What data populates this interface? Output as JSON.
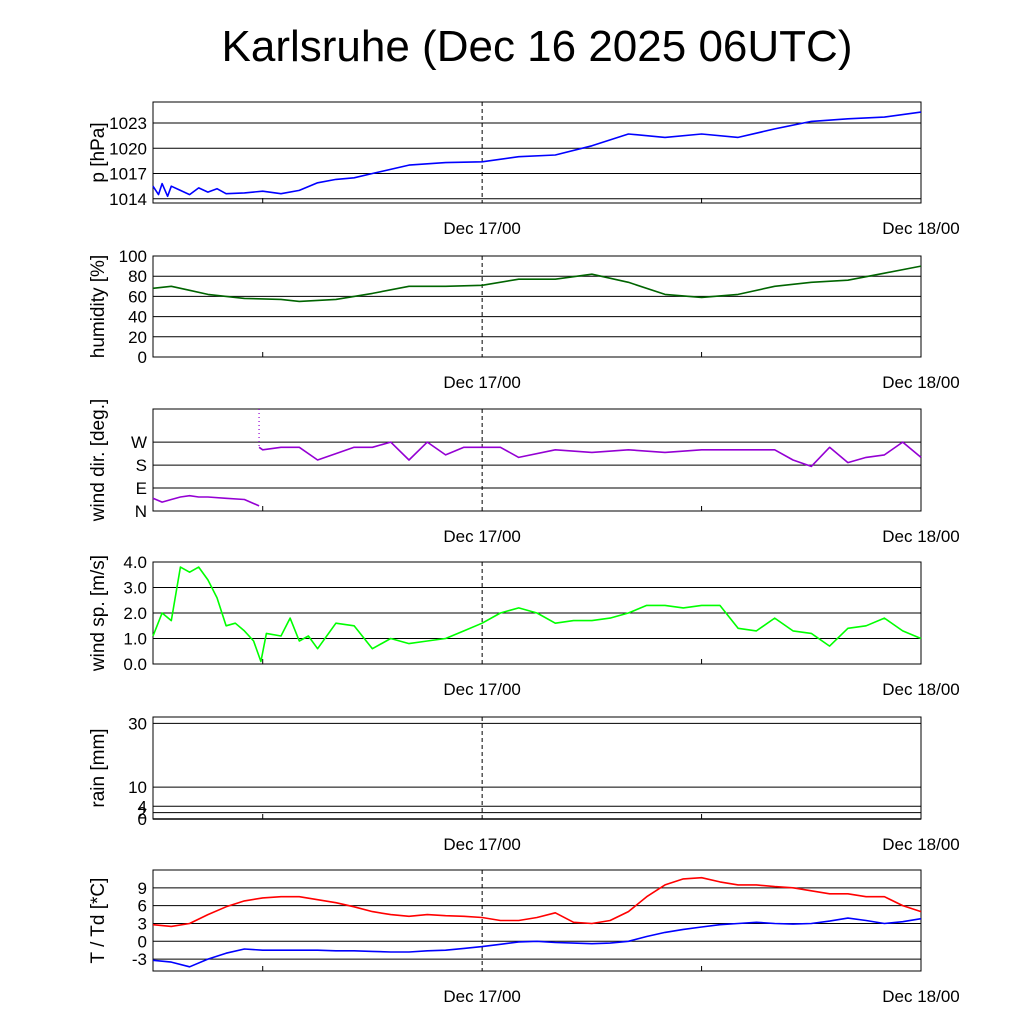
{
  "title": "Karlsruhe (Dec 16 2025 06UTC)",
  "x_axis": {
    "start": "2025-12-16 06UTC",
    "end": "2025-12-18 00UTC",
    "tick_labels": [
      "Dec 17/00",
      "Dec 18/00"
    ],
    "marker": "2025-12-17 00UTC"
  },
  "colors": {
    "pressure": "#0000ff",
    "humidity": "#006400",
    "wind_dir": "#9400d3",
    "wind_speed": "#00ff00",
    "temperature": "#ff0000",
    "dewpoint": "#0000ff"
  },
  "chart_data": [
    {
      "type": "line",
      "ylabel": "p [hPa]",
      "ylim": [
        1013.5,
        1025.5
      ],
      "yticks": [
        1014,
        1017,
        1020,
        1023
      ],
      "ytick_labels": [
        "1014",
        "1017",
        "1020",
        "1023"
      ],
      "x": [
        0,
        0.3,
        0.5,
        0.8,
        1,
        1.5,
        2,
        2.5,
        3,
        3.5,
        4,
        5,
        6,
        7,
        8,
        9,
        10,
        11,
        12,
        14,
        16,
        18,
        20,
        22,
        24,
        26,
        28,
        30,
        32,
        34,
        36,
        38,
        40,
        42
      ],
      "series": [
        {
          "values": [
            1015.5,
            1014.5,
            1015.8,
            1014.3,
            1015.5,
            1015,
            1014.5,
            1015.3,
            1014.8,
            1015.2,
            1014.6,
            1014.7,
            1014.9,
            1014.6,
            1015,
            1015.9,
            1016.3,
            1016.5,
            1017,
            1018,
            1018.3,
            1018.4,
            1019,
            1019.2,
            1020.3,
            1021.7,
            1021.3,
            1021.7,
            1021.3,
            1022.3,
            1023.2,
            1023.5,
            1023.7,
            1024.3
          ]
        }
      ]
    },
    {
      "type": "line",
      "ylabel": "humidity [%]",
      "ylim": [
        0,
        100
      ],
      "yticks": [
        0,
        20,
        40,
        60,
        80,
        100
      ],
      "ytick_labels": [
        "0",
        "20",
        "40",
        "60",
        "80",
        "100"
      ],
      "x": [
        0,
        1,
        2,
        3,
        5,
        7,
        8,
        10,
        12,
        14,
        16,
        18,
        20,
        22,
        24,
        26,
        28,
        30,
        32,
        34,
        36,
        38,
        40,
        42
      ],
      "series": [
        {
          "values": [
            68,
            70,
            66,
            62,
            58,
            57,
            55,
            57,
            63,
            70,
            70,
            71,
            77,
            77,
            82,
            74,
            62,
            59,
            62,
            70,
            74,
            76,
            83,
            90
          ]
        }
      ]
    },
    {
      "type": "line",
      "ylabel": "wind dir. [deg.]",
      "ylim": [
        0,
        400
      ],
      "yticks": [
        0,
        90,
        180,
        270
      ],
      "ytick_labels": [
        "N",
        "E",
        "S",
        "W"
      ],
      "x": [
        0,
        0.5,
        1,
        1.5,
        2,
        2.5,
        3,
        4,
        5,
        5.8,
        5.8,
        6,
        7,
        8,
        9,
        10,
        11,
        12,
        13,
        14,
        15,
        16,
        17,
        18,
        19,
        20,
        22,
        24,
        26,
        28,
        30,
        32,
        34,
        35,
        36,
        37,
        38,
        39,
        40,
        41,
        42
      ],
      "series": [
        {
          "values": [
            50,
            35,
            45,
            55,
            60,
            55,
            55,
            50,
            45,
            20,
            250,
            240,
            250,
            250,
            200,
            225,
            250,
            250,
            270,
            200,
            270,
            220,
            250,
            250,
            250,
            210,
            240,
            230,
            240,
            230,
            240,
            240,
            240,
            200,
            175,
            250,
            190,
            210,
            220,
            270,
            210
          ]
        }
      ]
    },
    {
      "type": "line",
      "ylabel": "wind sp. [m/s]",
      "ylim": [
        0,
        4
      ],
      "yticks": [
        0,
        1,
        2,
        3,
        4
      ],
      "ytick_labels": [
        "0.0",
        "1.0",
        "2.0",
        "3.0",
        "4.0"
      ],
      "x": [
        0,
        0.5,
        1,
        1.5,
        2,
        2.5,
        3,
        3.5,
        4,
        4.5,
        5,
        5.5,
        5.9,
        6.2,
        7,
        7.5,
        8,
        8.5,
        9,
        10,
        11,
        12,
        13,
        14,
        15,
        16,
        17,
        18,
        19,
        20,
        21,
        22,
        23,
        24,
        25,
        26,
        27,
        28,
        29,
        30,
        31,
        32,
        33,
        34,
        35,
        36,
        37,
        38,
        39,
        40,
        41,
        42
      ],
      "series": [
        {
          "values": [
            1.1,
            2.0,
            1.7,
            3.8,
            3.6,
            3.8,
            3.3,
            2.6,
            1.5,
            1.6,
            1.3,
            0.9,
            0.1,
            1.2,
            1.1,
            1.8,
            0.9,
            1.1,
            0.6,
            1.6,
            1.5,
            0.6,
            1.0,
            0.8,
            0.9,
            1.0,
            1.3,
            1.6,
            2.0,
            2.2,
            2.0,
            1.6,
            1.7,
            1.7,
            1.8,
            2.0,
            2.3,
            2.3,
            2.2,
            2.3,
            2.3,
            1.4,
            1.3,
            1.8,
            1.3,
            1.2,
            0.7,
            1.4,
            1.5,
            1.8,
            1.3,
            1.0
          ]
        }
      ]
    },
    {
      "type": "line",
      "ylabel": "rain [mm]",
      "ylim": [
        0,
        32
      ],
      "yticks": [
        0,
        2,
        4,
        10,
        30
      ],
      "ytick_labels": [
        "0",
        "2",
        "4",
        "10",
        "30"
      ],
      "x": [
        0,
        42
      ],
      "series": [
        {
          "values": [
            0,
            0
          ]
        }
      ]
    },
    {
      "type": "line",
      "ylabel": "T / Td [*C]",
      "ylim": [
        -5,
        12
      ],
      "yticks": [
        -3,
        0,
        3,
        6,
        9
      ],
      "ytick_labels": [
        "-3",
        "0",
        "3",
        "6",
        "9"
      ],
      "x": [
        0,
        1,
        2,
        3,
        4,
        5,
        6,
        7,
        8,
        9,
        10,
        11,
        12,
        13,
        14,
        15,
        16,
        17,
        18,
        19,
        20,
        21,
        22,
        23,
        24,
        25,
        26,
        27,
        28,
        29,
        30,
        31,
        32,
        33,
        34,
        35,
        36,
        37,
        38,
        39,
        40,
        41,
        42
      ],
      "series": [
        {
          "name": "T",
          "values": [
            2.8,
            2.5,
            3.0,
            4.5,
            5.8,
            6.8,
            7.3,
            7.5,
            7.5,
            7.0,
            6.5,
            5.8,
            5.0,
            4.5,
            4.2,
            4.5,
            4.3,
            4.2,
            4.0,
            3.5,
            3.5,
            4.0,
            4.8,
            3.2,
            3.0,
            3.5,
            5.0,
            7.5,
            9.5,
            10.5,
            10.7,
            10.0,
            9.5,
            9.5,
            9.2,
            9.0,
            8.5,
            8.0,
            8.0,
            7.5,
            7.5,
            6.0,
            5.0
          ]
        },
        {
          "name": "Td",
          "values": [
            -3.2,
            -3.5,
            -4.3,
            -3.0,
            -2.0,
            -1.3,
            -1.5,
            -1.5,
            -1.5,
            -1.5,
            -1.6,
            -1.6,
            -1.7,
            -1.8,
            -1.8,
            -1.6,
            -1.5,
            -1.2,
            -0.9,
            -0.5,
            -0.1,
            0.0,
            -0.2,
            -0.3,
            -0.4,
            -0.3,
            0.0,
            0.8,
            1.5,
            2.0,
            2.4,
            2.8,
            3.0,
            3.2,
            3.0,
            2.9,
            3.0,
            3.4,
            3.9,
            3.5,
            3.0,
            3.3,
            3.8
          ]
        }
      ]
    }
  ]
}
